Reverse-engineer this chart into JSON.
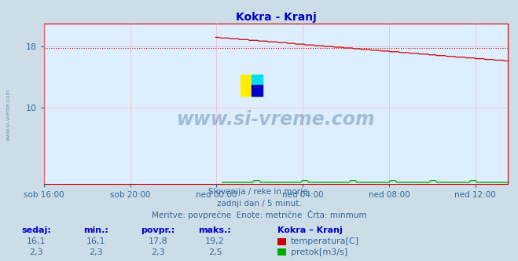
{
  "title": "Kokra - Kranj",
  "title_color": "#0000cc",
  "bg_color": "#ccdde8",
  "plot_bg_color": "#ddeeff",
  "grid_color": "#ffaaaa",
  "axis_color": "#cc0000",
  "xlabel_color": "#336699",
  "ylabel_color": "#336699",
  "tick_color": "#336699",
  "watermark_text": "www.si-vreme.com",
  "watermark_color": "#1a4a7a",
  "subtitle_lines": [
    "Slovenija / reke in morje.",
    "zadnji dan / 5 minut.",
    "Meritve: povprečne  Enote: metrične  Črta: minmum"
  ],
  "subtitle_color": "#336699",
  "table_header_labels": [
    "sedaj:",
    "min.:",
    "povpr.:",
    "maks.:",
    "Kokra – Kranj"
  ],
  "table_row1": [
    "16,1",
    "16,1",
    "17,8",
    "19,2"
  ],
  "table_row2": [
    "2,3",
    "2,3",
    "2,3",
    "2,5"
  ],
  "legend1_label": "temperatura[C]",
  "legend2_label": "pretok[m3/s]",
  "legend1_color": "#cc0000",
  "legend2_color": "#00aa00",
  "ylim": [
    0,
    21.0
  ],
  "yticks": [
    10,
    18
  ],
  "avg_temp": 17.8,
  "temp_start": 19.2,
  "temp_end": 16.1,
  "x_tick_labels": [
    "sob 16:00",
    "sob 20:00",
    "ned 00:00",
    "ned 04:00",
    "ned 08:00",
    "ned 12:00"
  ],
  "x_tick_positions": [
    0,
    4,
    8,
    12,
    16,
    20
  ],
  "xlim": [
    0,
    21.5
  ],
  "logo_yellow": "#ffee00",
  "logo_cyan": "#00ddee",
  "logo_blue": "#0000cc"
}
